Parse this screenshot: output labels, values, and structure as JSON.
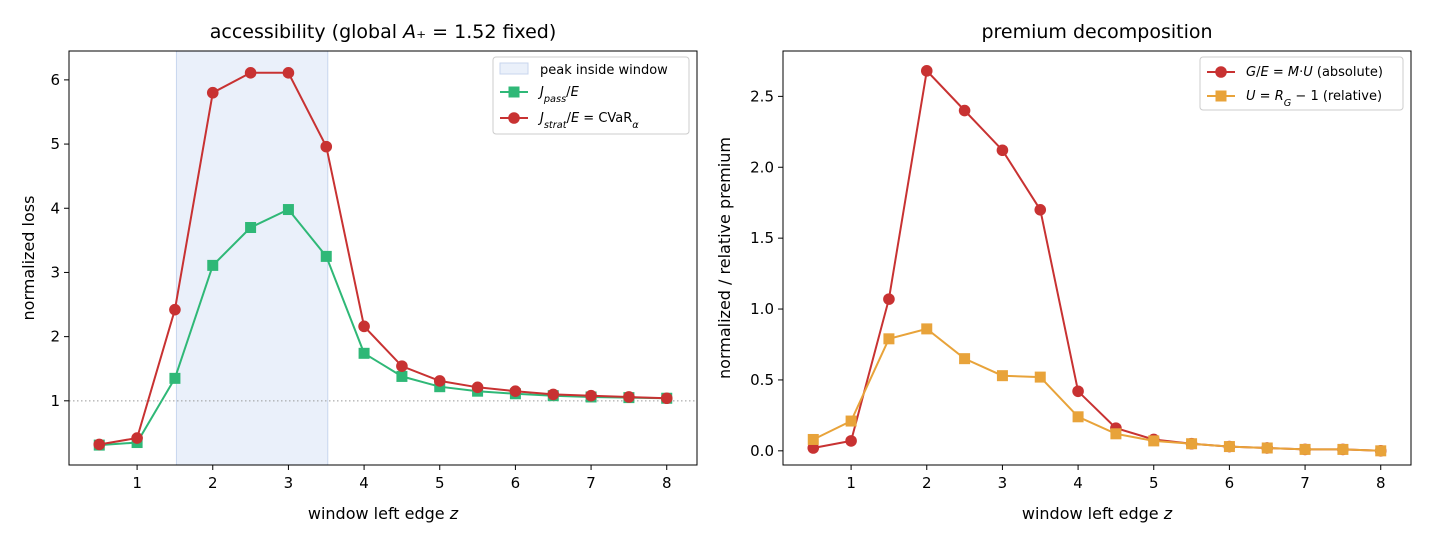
{
  "chart_data": [
    {
      "type": "line",
      "title": "accessibility (global A₊ = 1.52 fixed)",
      "xlabel": "window left edge z",
      "ylabel": "normalized loss",
      "xlim": [
        0.1,
        8.4
      ],
      "ylim": [
        0.0,
        6.45
      ],
      "xticks": [
        "1",
        "2",
        "3",
        "4",
        "5",
        "6",
        "7",
        "8"
      ],
      "yticks": [
        "1",
        "2",
        "3",
        "4",
        "5",
        "6"
      ],
      "shaded_region": {
        "label": "peak inside window",
        "x": [
          1.52,
          3.52
        ],
        "color": "#dce6f5"
      },
      "reference_line": {
        "y": 1.0,
        "style": "dotted",
        "color": "#999999"
      },
      "legend_position": "top-right",
      "x": [
        0.5,
        1.0,
        1.5,
        2.0,
        2.5,
        3.0,
        3.5,
        4.0,
        4.5,
        5.0,
        5.5,
        6.0,
        6.5,
        7.0,
        7.5,
        8.0
      ],
      "series": [
        {
          "name": "J_pass/E",
          "color": "#2fb877",
          "marker": "square",
          "values": [
            0.31,
            0.35,
            1.35,
            3.11,
            3.7,
            3.98,
            3.25,
            1.74,
            1.38,
            1.22,
            1.15,
            1.11,
            1.08,
            1.06,
            1.05,
            1.04
          ]
        },
        {
          "name": "J_strat/E = CVaR_α",
          "color": "#c83232",
          "marker": "circle",
          "values": [
            0.32,
            0.42,
            2.42,
            5.8,
            6.11,
            6.11,
            4.96,
            2.16,
            1.54,
            1.31,
            1.21,
            1.15,
            1.1,
            1.08,
            1.06,
            1.04
          ]
        }
      ]
    },
    {
      "type": "line",
      "title": "premium decomposition",
      "xlabel": "window left edge z",
      "ylabel": "normalized / relative premium",
      "xlim": [
        0.1,
        8.4
      ],
      "ylim": [
        -0.1,
        2.82
      ],
      "xticks": [
        "1",
        "2",
        "3",
        "4",
        "5",
        "6",
        "7",
        "8"
      ],
      "yticks": [
        "0.0",
        "0.5",
        "1.0",
        "1.5",
        "2.0",
        "2.5"
      ],
      "legend_position": "top-right",
      "x": [
        0.5,
        1.0,
        1.5,
        2.0,
        2.5,
        3.0,
        3.5,
        4.0,
        4.5,
        5.0,
        5.5,
        6.0,
        6.5,
        7.0,
        7.5,
        8.0
      ],
      "series": [
        {
          "name": "G/E = M·U (absolute)",
          "color": "#c83232",
          "marker": "circle",
          "values": [
            0.02,
            0.07,
            1.07,
            2.68,
            2.4,
            2.12,
            1.7,
            0.42,
            0.16,
            0.08,
            0.05,
            0.03,
            0.02,
            0.01,
            0.01,
            0.0
          ]
        },
        {
          "name": "U = R_G − 1 (relative)",
          "color": "#e8a33a",
          "marker": "square",
          "values": [
            0.08,
            0.21,
            0.79,
            0.86,
            0.65,
            0.53,
            0.52,
            0.24,
            0.12,
            0.07,
            0.05,
            0.03,
            0.02,
            0.01,
            0.01,
            0.0
          ]
        }
      ]
    }
  ]
}
